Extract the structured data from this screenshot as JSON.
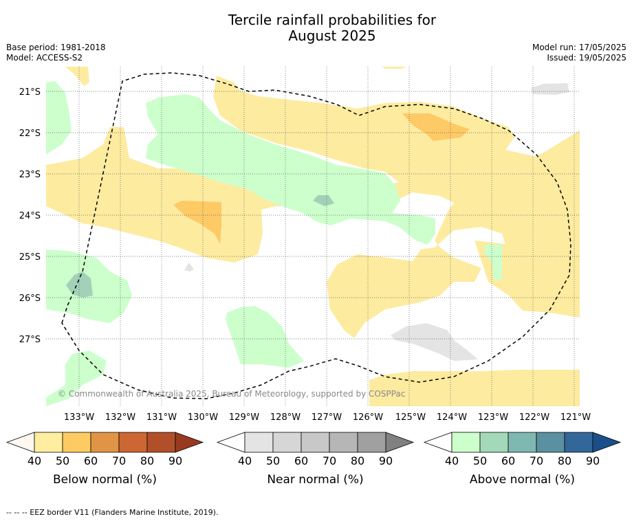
{
  "title_line1": "Tercile rainfall probabilities for",
  "title_line2": "August 2025",
  "base_period": "Base period: 1981-2018",
  "model": "Model: ACCESS-S2",
  "model_run": "Model run: 17/05/2025",
  "issued": "Issued: 19/05/2025",
  "copyright": "© Commonwealth of Australia 2025, Bureau of Meteorology, supported by COSPPac",
  "footnote": "--  --  -- EEZ border V11 (Flanders Marine Institute, 2019).",
  "lat_labels": [
    "21°S",
    "22°S",
    "23°S",
    "24°S",
    "25°S",
    "26°S",
    "27°S"
  ],
  "lon_labels": [
    "133°W",
    "132°W",
    "131°W",
    "130°W",
    "129°W",
    "128°W",
    "127°W",
    "126°W",
    "125°W",
    "124°W",
    "123°W",
    "122°W",
    "121°W"
  ],
  "colorbars": [
    {
      "title": "Below normal (%)",
      "ticks": [
        "40",
        "50",
        "60",
        "70",
        "80",
        "90"
      ],
      "colors": [
        "#fff8f0",
        "#ffeda0",
        "#fdcb62",
        "#e09445",
        "#cc6633",
        "#b24f2b",
        "#993a20"
      ]
    },
    {
      "title": "Near normal (%)",
      "ticks": [
        "40",
        "50",
        "60",
        "70",
        "80",
        "90"
      ],
      "colors": [
        "#ffffff",
        "#e4e4e4",
        "#d6d6d6",
        "#c8c8c8",
        "#b6b6b6",
        "#a0a0a0",
        "#808080"
      ]
    },
    {
      "title": "Above normal (%)",
      "ticks": [
        "40",
        "50",
        "60",
        "70",
        "80",
        "90"
      ],
      "colors": [
        "#ffffff",
        "#ccffcc",
        "#a3d9b8",
        "#7fb8b0",
        "#5a90a0",
        "#336699",
        "#1a4f8c"
      ]
    }
  ],
  "colors": {
    "below_40": "#fdeba0",
    "below_50": "#fdca66",
    "near_40": "#e4e4e4",
    "above_40": "#ccffcc",
    "above_50": "#a3d1b8",
    "eez": "#000000",
    "grid": "#555555"
  }
}
